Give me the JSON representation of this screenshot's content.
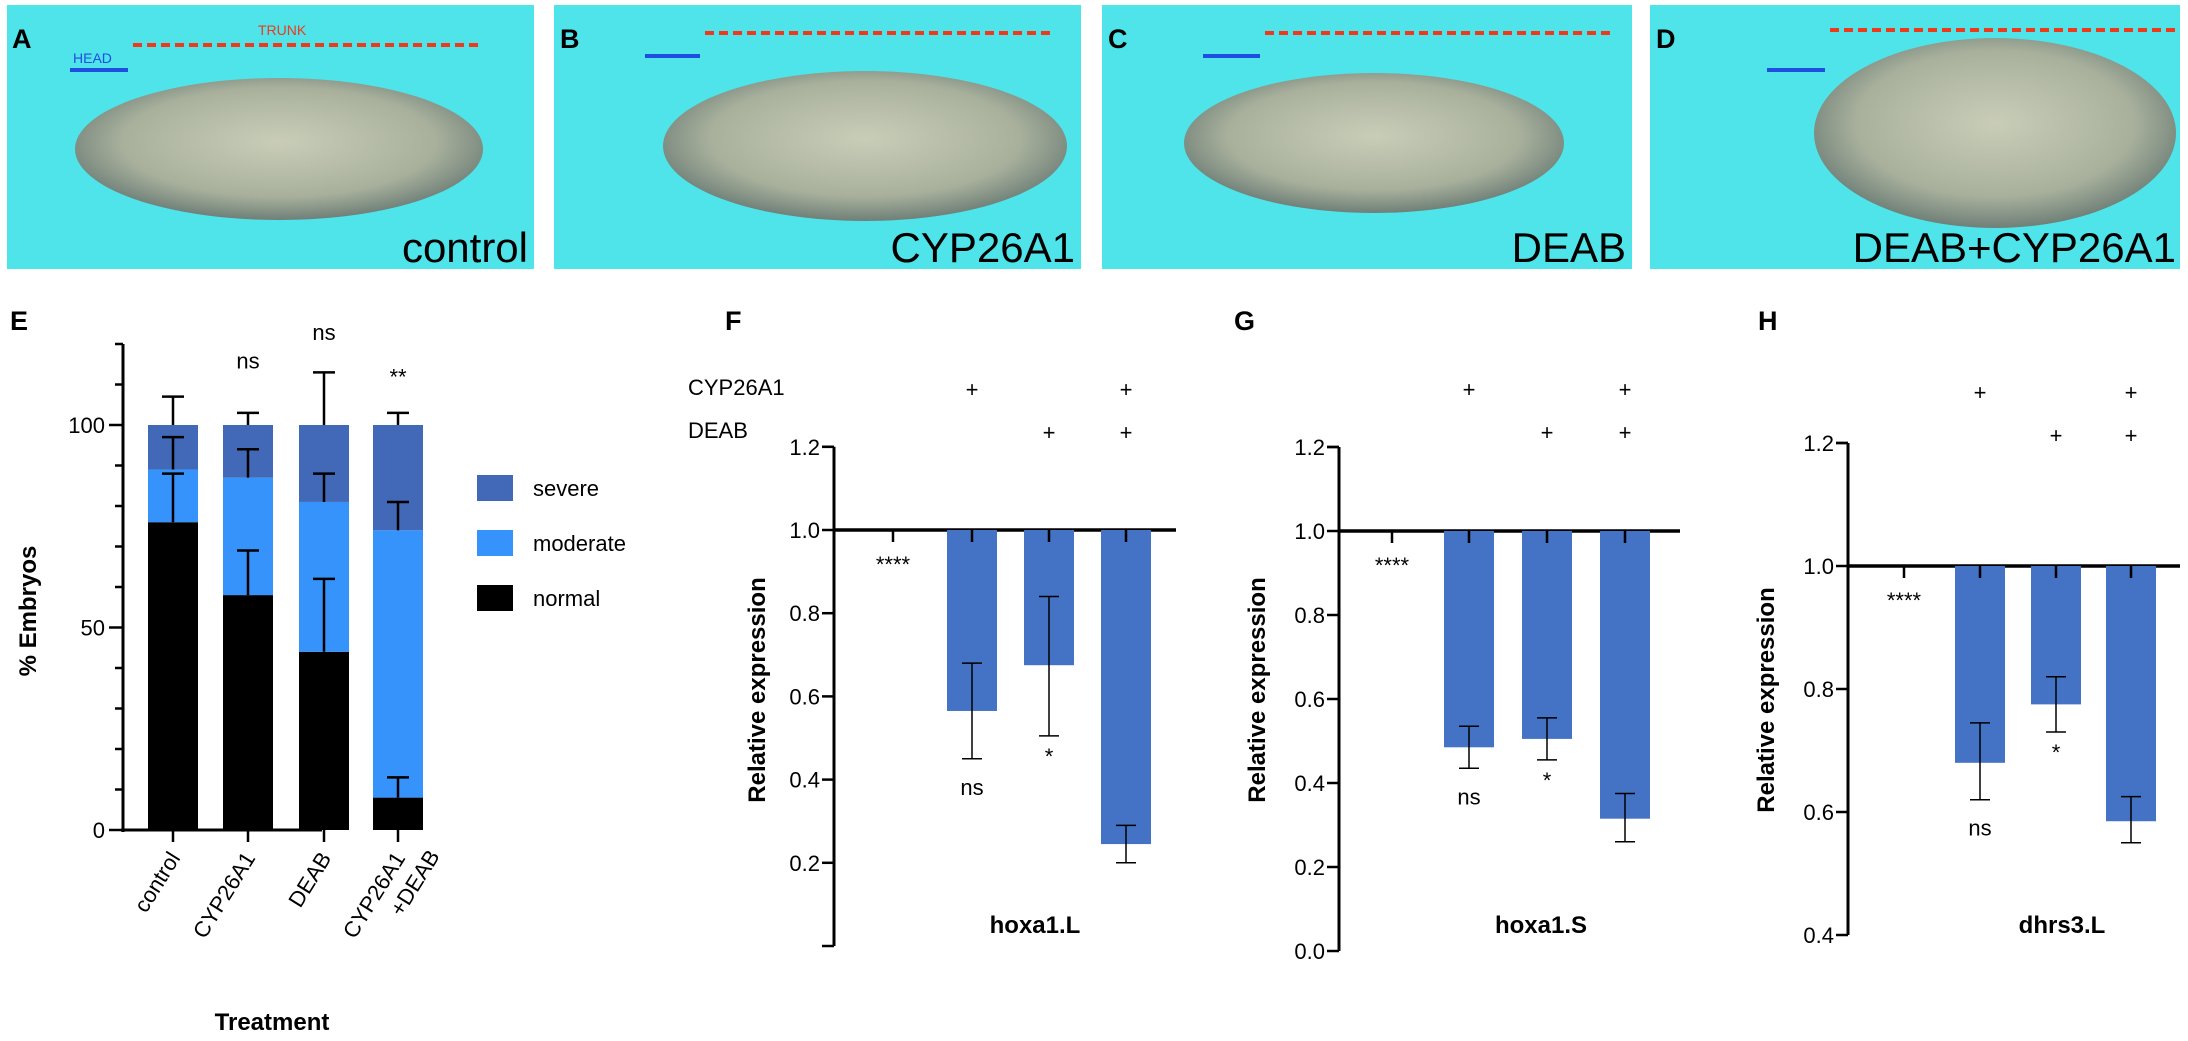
{
  "photos": [
    {
      "letter": "A",
      "label": "control"
    },
    {
      "letter": "B",
      "label": "CYP26A1"
    },
    {
      "letter": "C",
      "label": "DEAB"
    },
    {
      "letter": "D",
      "label": "DEAB+CYP26A1"
    }
  ],
  "photo_annotations": {
    "head": "HEAD",
    "trunk": "TRUNK",
    "head_color": "#1f4fe0",
    "trunk_color": "#ee3a1a",
    "background_color": "#4fe3ea"
  },
  "colors": {
    "severe": "#4169b8",
    "moderate": "#3593fb",
    "normal": "#000000",
    "bar": "#4472c4"
  },
  "chart_data": [
    {
      "panel": "E",
      "type": "bar",
      "stacked": true,
      "categories": [
        "control",
        "CYP26A1",
        "DEAB",
        "CYP26A1\n+DEAB"
      ],
      "category_lines": [
        [
          "control"
        ],
        [
          "CYP26A1"
        ],
        [
          "DEAB"
        ],
        [
          "CYP26A1",
          "+DEAB"
        ]
      ],
      "series": [
        {
          "name": "normal",
          "values": [
            76,
            58,
            44,
            8
          ],
          "error_top": [
            88,
            69,
            62,
            13
          ]
        },
        {
          "name": "moderate",
          "values": [
            13,
            29,
            37,
            66
          ],
          "error_top": [
            97,
            94,
            88,
            81
          ]
        },
        {
          "name": "severe",
          "values": [
            11,
            13,
            19,
            26
          ],
          "error_top": [
            107,
            103,
            113,
            103
          ]
        }
      ],
      "legend": [
        "severe",
        "moderate",
        "normal"
      ],
      "legend_position": "right",
      "significance": [
        "",
        "ns",
        "ns",
        "**"
      ],
      "xlabel": "Treatment",
      "ylabel": "% Embryos",
      "yticks": [
        "0",
        "50",
        "100"
      ],
      "ylim": [
        0,
        120
      ]
    },
    {
      "panel": "F",
      "type": "bar",
      "baseline": 1.0,
      "title": "hoxa1.L",
      "ylabel": "Relative expression",
      "row_labels": [
        "CYP26A1",
        "DEAB"
      ],
      "cyp26a1": [
        "",
        "+",
        "",
        "+"
      ],
      "deab": [
        "",
        "",
        "+",
        "+"
      ],
      "values": [
        1.0,
        0.565,
        0.675,
        0.245
      ],
      "error_low": [
        1.0,
        0.45,
        0.505,
        0.2
      ],
      "error_high": [
        1.0,
        0.68,
        0.84,
        0.29
      ],
      "significance": [
        "****",
        "ns",
        "*",
        ""
      ],
      "yticks": [
        "0.2",
        "0.4",
        "0.6",
        "0.8",
        "1.0",
        "1.2"
      ],
      "ylim": [
        0.0,
        1.2
      ]
    },
    {
      "panel": "G",
      "type": "bar",
      "baseline": 1.0,
      "title": "hoxa1.S",
      "ylabel": "Relative expression",
      "cyp26a1": [
        "",
        "+",
        "",
        "+"
      ],
      "deab": [
        "",
        "",
        "+",
        "+"
      ],
      "values": [
        1.0,
        0.485,
        0.505,
        0.315
      ],
      "error_low": [
        1.0,
        0.435,
        0.455,
        0.26
      ],
      "error_high": [
        1.0,
        0.535,
        0.555,
        0.375
      ],
      "significance": [
        "****",
        "ns",
        "*",
        ""
      ],
      "yticks": [
        "0.0",
        "0.2",
        "0.4",
        "0.6",
        "0.8",
        "1.0",
        "1.2"
      ],
      "ylim": [
        0.0,
        1.2
      ]
    },
    {
      "panel": "H",
      "type": "bar",
      "baseline": 1.0,
      "title": "dhrs3.L",
      "ylabel": "Relative expression",
      "cyp26a1": [
        "",
        "+",
        "",
        "+"
      ],
      "deab": [
        "",
        "",
        "+",
        "+"
      ],
      "values": [
        1.0,
        0.68,
        0.775,
        0.585
      ],
      "error_low": [
        1.0,
        0.62,
        0.73,
        0.55
      ],
      "error_high": [
        1.0,
        0.745,
        0.82,
        0.625
      ],
      "significance": [
        "****",
        "ns",
        "*",
        ""
      ],
      "yticks": [
        "0.4",
        "0.6",
        "0.8",
        "1.0",
        "1.2"
      ],
      "ylim": [
        0.4,
        1.2
      ]
    }
  ]
}
